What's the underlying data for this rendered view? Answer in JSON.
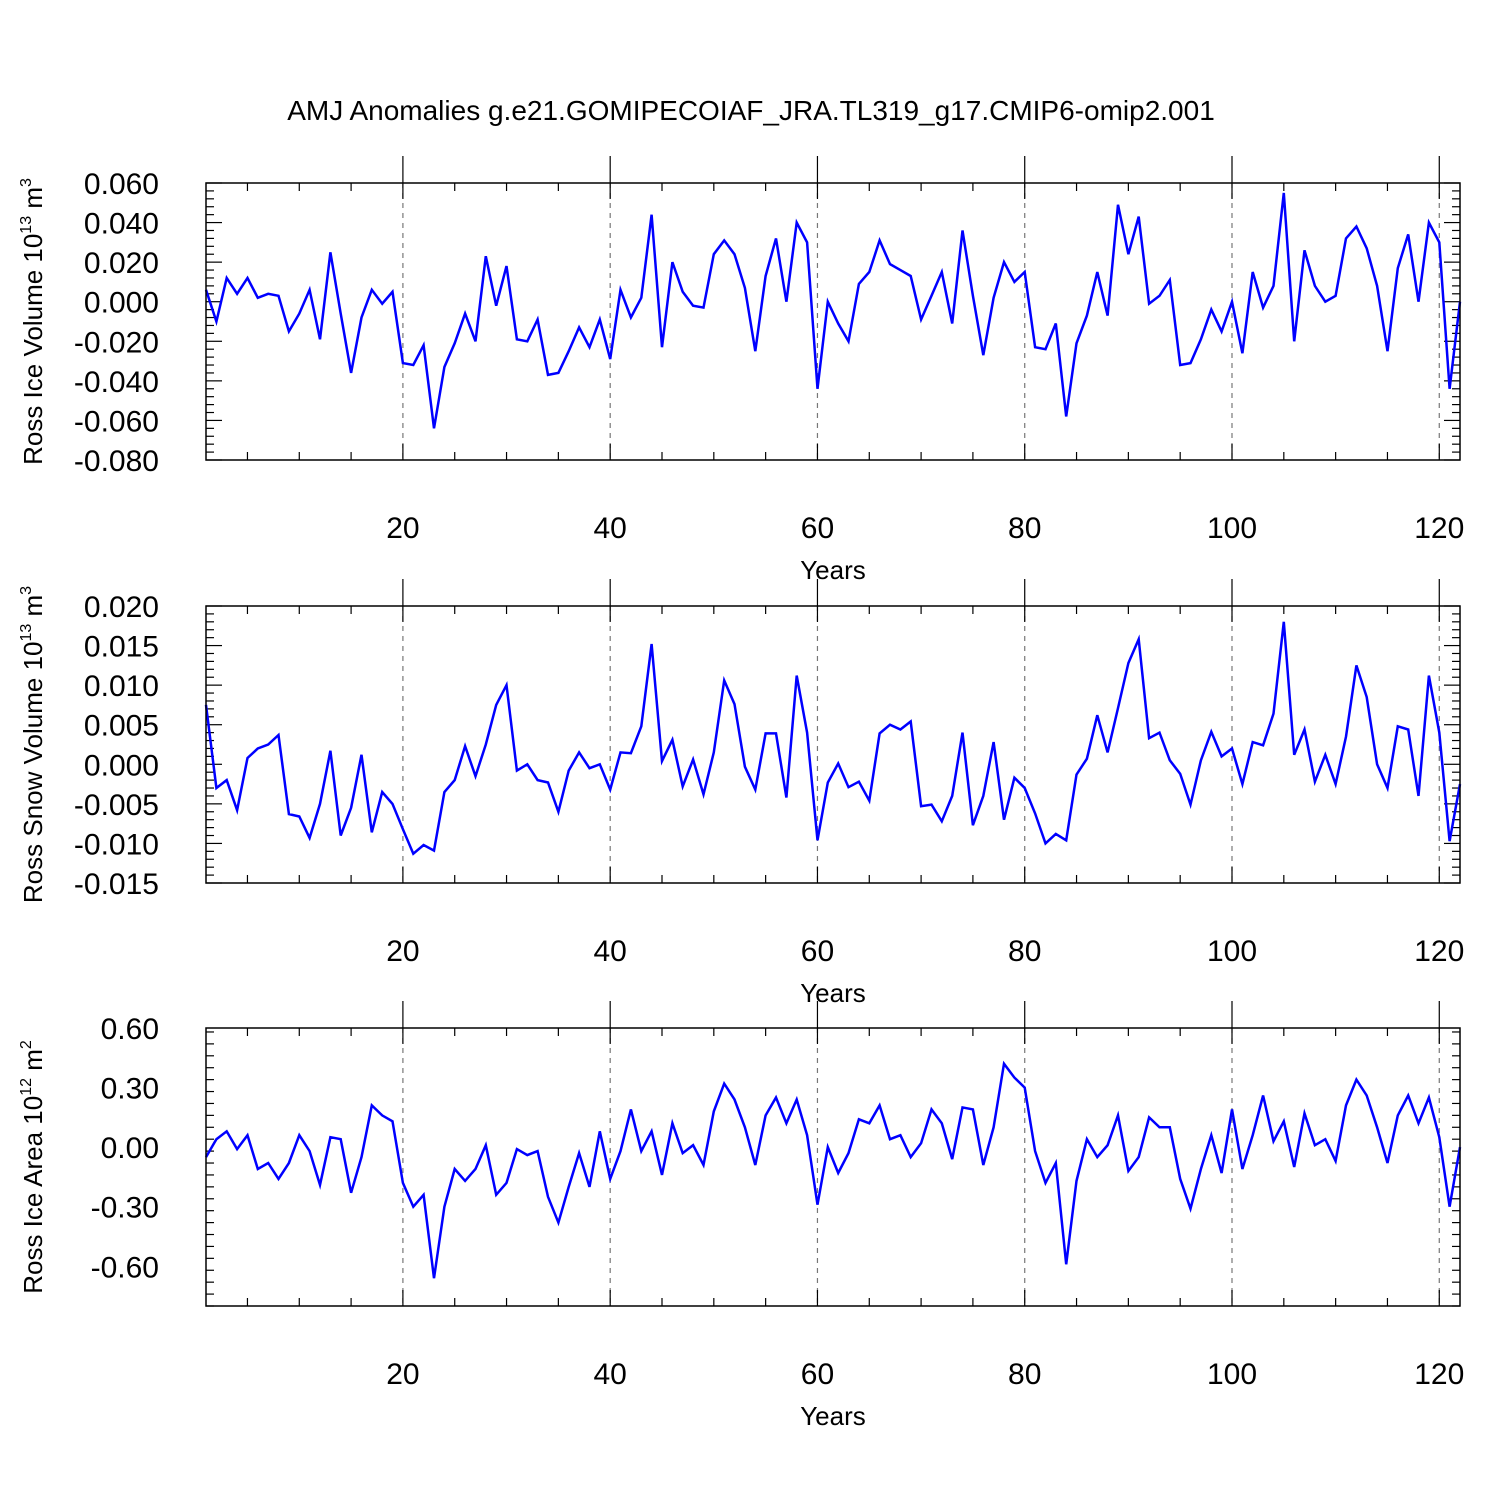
{
  "figure": {
    "title": "AMJ Anomalies g.e21.GOMIPECOIAF_JRA.TL319_g17.CMIP6-omip2.001"
  },
  "chart_data": [
    {
      "type": "line",
      "id": "ice-volume",
      "ylabel": "Ross Ice Volume 10",
      "ylabel_exponent": "13",
      "ylabel_unit": "m",
      "ylabel_unit_exponent": "3",
      "xlabel": "Years",
      "xlim": [
        1,
        122
      ],
      "ylim": [
        -0.08,
        0.06
      ],
      "yticks": [
        -0.08,
        -0.06,
        -0.04,
        -0.02,
        0.0,
        0.02,
        0.04,
        0.06
      ],
      "ytick_labels": [
        "-0.080",
        "-0.060",
        "-0.040",
        "-0.020",
        "0.000",
        "0.020",
        "0.040",
        "0.060"
      ],
      "xticks": [
        20,
        40,
        60,
        80,
        100,
        120
      ],
      "xtick_labels": [
        "20",
        "40",
        "60",
        "80",
        "100",
        "120"
      ],
      "gridlines_x": [
        20,
        40,
        60,
        80,
        100,
        120
      ],
      "line_color": "#0000ff",
      "series": [
        {
          "name": "Ross Ice Volume",
          "x_start": 1,
          "values": [
            0.006,
            -0.01,
            0.012,
            0.004,
            0.012,
            0.002,
            0.004,
            0.003,
            -0.015,
            -0.006,
            0.006,
            -0.019,
            0.025,
            -0.006,
            -0.036,
            -0.008,
            0.006,
            -0.001,
            0.005,
            -0.031,
            -0.032,
            -0.022,
            -0.064,
            -0.033,
            -0.021,
            -0.006,
            -0.02,
            0.023,
            -0.002,
            0.018,
            -0.019,
            -0.02,
            -0.009,
            -0.037,
            -0.036,
            -0.025,
            -0.013,
            -0.023,
            -0.009,
            -0.029,
            0.006,
            -0.008,
            0.002,
            0.044,
            -0.023,
            0.02,
            0.005,
            -0.002,
            -0.003,
            0.024,
            0.031,
            0.024,
            0.007,
            -0.025,
            0.013,
            0.032,
            0.0,
            0.04,
            0.03,
            -0.044,
            0.0,
            -0.011,
            -0.02,
            0.009,
            0.015,
            0.031,
            0.019,
            0.016,
            0.013,
            -0.009,
            0.003,
            0.015,
            -0.011,
            0.036,
            0.003,
            -0.027,
            0.002,
            0.02,
            0.01,
            0.015,
            -0.023,
            -0.024,
            -0.011,
            -0.058,
            -0.021,
            -0.007,
            0.015,
            -0.007,
            0.049,
            0.024,
            0.043,
            -0.001,
            0.003,
            0.011,
            -0.032,
            -0.031,
            -0.019,
            -0.004,
            -0.015,
            0.0,
            -0.026,
            0.015,
            -0.003,
            0.008,
            0.055,
            -0.02,
            0.026,
            0.008,
            0.0,
            0.003,
            0.032,
            0.038,
            0.027,
            0.008,
            -0.025,
            0.017,
            0.034,
            0.0,
            0.04,
            0.03,
            -0.044,
            0.0
          ]
        }
      ]
    },
    {
      "type": "line",
      "id": "snow-volume",
      "ylabel": "Ross Snow Volume 10",
      "ylabel_exponent": "13",
      "ylabel_unit": "m",
      "ylabel_unit_exponent": "3",
      "xlabel": "Years",
      "xlim": [
        1,
        122
      ],
      "ylim": [
        -0.015,
        0.02
      ],
      "yticks": [
        -0.015,
        -0.01,
        -0.005,
        0.0,
        0.005,
        0.01,
        0.015,
        0.02
      ],
      "ytick_labels": [
        "-0.015",
        "-0.010",
        "-0.005",
        "0.000",
        "0.005",
        "0.010",
        "0.015",
        "0.020"
      ],
      "xticks": [
        20,
        40,
        60,
        80,
        100,
        120
      ],
      "xtick_labels": [
        "20",
        "40",
        "60",
        "80",
        "100",
        "120"
      ],
      "gridlines_x": [
        20,
        40,
        60,
        80,
        100,
        120
      ],
      "line_color": "#0000ff",
      "series": [
        {
          "name": "Ross Snow Volume",
          "x_start": 1,
          "values": [
            0.0075,
            -0.003,
            -0.002,
            -0.0058,
            0.0008,
            0.002,
            0.0025,
            0.0037,
            -0.0063,
            -0.0066,
            -0.0093,
            -0.005,
            0.0017,
            -0.009,
            -0.0055,
            0.0012,
            -0.0086,
            -0.0035,
            -0.005,
            -0.0082,
            -0.0113,
            -0.0102,
            -0.0109,
            -0.0035,
            -0.002,
            0.0023,
            -0.0015,
            0.0025,
            0.0075,
            0.01,
            -0.0008,
            0.0,
            -0.002,
            -0.0023,
            -0.006,
            -0.0008,
            0.0015,
            -0.0005,
            0.0,
            -0.0032,
            0.0015,
            0.0014,
            0.0048,
            0.0152,
            0.0004,
            0.0031,
            -0.0028,
            0.0006,
            -0.0038,
            0.0015,
            0.0106,
            0.0076,
            -0.0003,
            -0.0032,
            0.0039,
            0.0039,
            -0.0042,
            0.0112,
            0.004,
            -0.0096,
            -0.0023,
            0.0001,
            -0.0029,
            -0.0022,
            -0.0046,
            0.0039,
            0.005,
            0.0044,
            0.0054,
            -0.0053,
            -0.0051,
            -0.0072,
            -0.004,
            0.004,
            -0.0077,
            -0.004,
            0.0028,
            -0.007,
            -0.0017,
            -0.003,
            -0.0062,
            -0.01,
            -0.0088,
            -0.0096,
            -0.0013,
            0.0007,
            0.0062,
            0.0015,
            0.0071,
            0.0128,
            0.0158,
            0.0033,
            0.004,
            0.0005,
            -0.0012,
            -0.0051,
            0.0005,
            0.0041,
            0.001,
            0.002,
            -0.0025,
            0.0028,
            0.0024,
            0.0064,
            0.018,
            0.0012,
            0.0044,
            -0.0022,
            0.0012,
            -0.0025,
            0.0035,
            0.0125,
            0.0085,
            0.0,
            -0.003,
            0.0048,
            0.0044,
            -0.004,
            0.0112,
            0.004,
            -0.0097,
            -0.0025
          ]
        }
      ]
    },
    {
      "type": "line",
      "id": "ice-area",
      "ylabel": "Ross Ice Area 10",
      "ylabel_exponent": "12",
      "ylabel_unit": "m",
      "ylabel_unit_exponent": "2",
      "xlabel": "Years",
      "xlim": [
        1,
        122
      ],
      "ylim": [
        -0.8,
        0.6
      ],
      "yticks": [
        -0.6,
        -0.3,
        0.0,
        0.3,
        0.6
      ],
      "ytick_labels": [
        "-0.60",
        "-0.30",
        "0.00",
        "0.30",
        "0.60"
      ],
      "xticks": [
        20,
        40,
        60,
        80,
        100,
        120
      ],
      "xtick_labels": [
        "20",
        "40",
        "60",
        "80",
        "100",
        "120"
      ],
      "gridlines_x": [
        20,
        40,
        60,
        80,
        100,
        120
      ],
      "line_color": "#0000ff",
      "series": [
        {
          "name": "Ross Ice Area",
          "x_start": 1,
          "values": [
            -0.05,
            0.04,
            0.08,
            -0.01,
            0.06,
            -0.11,
            -0.08,
            -0.16,
            -0.08,
            0.06,
            -0.02,
            -0.19,
            0.05,
            0.04,
            -0.23,
            -0.05,
            0.21,
            0.16,
            0.13,
            -0.18,
            -0.3,
            -0.24,
            -0.66,
            -0.3,
            -0.11,
            -0.17,
            -0.11,
            0.01,
            -0.24,
            -0.18,
            -0.01,
            -0.04,
            -0.02,
            -0.25,
            -0.38,
            -0.2,
            -0.03,
            -0.2,
            0.08,
            -0.16,
            -0.02,
            0.19,
            -0.02,
            0.08,
            -0.14,
            0.12,
            -0.03,
            0.01,
            -0.09,
            0.18,
            0.32,
            0.24,
            0.1,
            -0.09,
            0.16,
            0.25,
            0.12,
            0.24,
            0.06,
            -0.29,
            0.0,
            -0.13,
            -0.03,
            0.14,
            0.12,
            0.21,
            0.04,
            0.06,
            -0.05,
            0.02,
            0.19,
            0.12,
            -0.06,
            0.2,
            0.19,
            -0.09,
            0.1,
            0.42,
            0.35,
            0.3,
            -0.02,
            -0.18,
            -0.08,
            -0.59,
            -0.17,
            0.04,
            -0.05,
            0.01,
            0.16,
            -0.12,
            -0.05,
            0.15,
            0.1,
            0.1,
            -0.16,
            -0.31,
            -0.11,
            0.06,
            -0.13,
            0.19,
            -0.11,
            0.06,
            0.26,
            0.03,
            0.13,
            -0.1,
            0.17,
            0.01,
            0.04,
            -0.07,
            0.21,
            0.34,
            0.26,
            0.1,
            -0.08,
            0.16,
            0.26,
            0.12,
            0.25,
            0.05,
            -0.3,
            0.0
          ]
        }
      ]
    }
  ]
}
